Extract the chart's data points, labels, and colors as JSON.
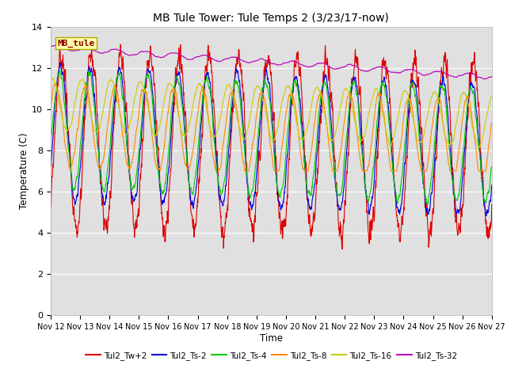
{
  "title": "MB Tule Tower: Tule Temps 2 (3/23/17-now)",
  "xlabel": "Time",
  "ylabel": "Temperature (C)",
  "ylim": [
    0,
    14
  ],
  "xlim": [
    0,
    360
  ],
  "background_color": "#e0e0e0",
  "legend_label": "MB_tule",
  "series_order": [
    "Tul2_Tw+2",
    "Tul2_Ts-2",
    "Tul2_Ts-4",
    "Tul2_Ts-8",
    "Tul2_Ts-16",
    "Tul2_Ts-32"
  ],
  "series": {
    "Tul2_Tw+2": {
      "color": "#dd0000",
      "lw": 0.8
    },
    "Tul2_Ts-2": {
      "color": "#0000dd",
      "lw": 0.8
    },
    "Tul2_Ts-4": {
      "color": "#00cc00",
      "lw": 0.8
    },
    "Tul2_Ts-8": {
      "color": "#ff8800",
      "lw": 0.8
    },
    "Tul2_Ts-16": {
      "color": "#cccc00",
      "lw": 0.8
    },
    "Tul2_Ts-32": {
      "color": "#bb00bb",
      "lw": 0.8
    }
  },
  "xtick_labels": [
    "Nov 12",
    "Nov 13",
    "Nov 14",
    "Nov 15",
    "Nov 16",
    "Nov 17",
    "Nov 18",
    "Nov 19",
    "Nov 20",
    "Nov 21",
    "Nov 22",
    "Nov 23",
    "Nov 24",
    "Nov 25",
    "Nov 26",
    "Nov 27"
  ],
  "xtick_positions": [
    0,
    24,
    48,
    72,
    96,
    120,
    144,
    168,
    192,
    216,
    240,
    264,
    288,
    312,
    336,
    360
  ]
}
